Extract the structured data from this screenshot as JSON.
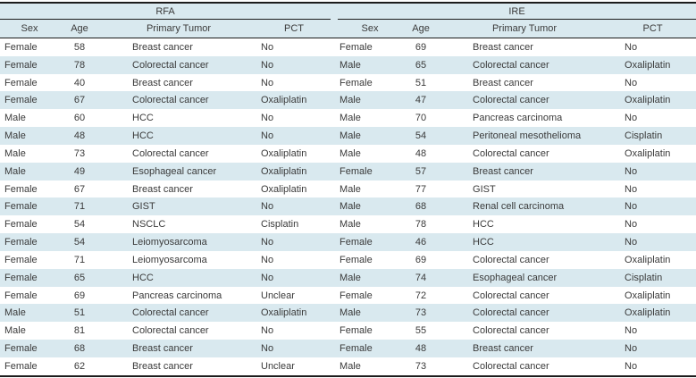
{
  "colors": {
    "stripe": "#d9e9ef",
    "rule": "#1c1c1c",
    "text": "#3a3a3a"
  },
  "groups": [
    {
      "label": "RFA",
      "columns": [
        "Sex",
        "Age",
        "Primary Tumor",
        "PCT"
      ],
      "rows": [
        [
          "Female",
          58,
          "Breast cancer",
          "No"
        ],
        [
          "Female",
          78,
          "Colorectal cancer",
          "No"
        ],
        [
          "Female",
          40,
          "Breast cancer",
          "No"
        ],
        [
          "Female",
          67,
          "Colorectal cancer",
          "Oxaliplatin"
        ],
        [
          "Male",
          60,
          "HCC",
          "No"
        ],
        [
          "Male",
          48,
          "HCC",
          "No"
        ],
        [
          "Male",
          73,
          "Colorectal cancer",
          "Oxaliplatin"
        ],
        [
          "Male",
          49,
          "Esophageal cancer",
          "Oxaliplatin"
        ],
        [
          "Female",
          67,
          "Breast cancer",
          "Oxaliplatin"
        ],
        [
          "Female",
          71,
          "GIST",
          "No"
        ],
        [
          "Female",
          54,
          "NSCLC",
          "Cisplatin"
        ],
        [
          "Female",
          54,
          "Leiomyosarcoma",
          "No"
        ],
        [
          "Female",
          71,
          "Leiomyosarcoma",
          "No"
        ],
        [
          "Female",
          65,
          "HCC",
          "No"
        ],
        [
          "Female",
          69,
          "Pancreas carcinoma",
          "Unclear"
        ],
        [
          "Male",
          51,
          "Colorectal cancer",
          "Oxaliplatin"
        ],
        [
          "Male",
          81,
          "Colorectal cancer",
          "No"
        ],
        [
          "Female",
          68,
          "Breast cancer",
          "No"
        ],
        [
          "Female",
          62,
          "Breast cancer",
          "Unclear"
        ]
      ]
    },
    {
      "label": "IRE",
      "columns": [
        "Sex",
        "Age",
        "Primary Tumor",
        "PCT"
      ],
      "rows": [
        [
          "Female",
          69,
          "Breast cancer",
          "No"
        ],
        [
          "Male",
          65,
          "Colorectal cancer",
          "Oxaliplatin"
        ],
        [
          "Female",
          51,
          "Breast cancer",
          "No"
        ],
        [
          "Male",
          47,
          "Colorectal cancer",
          "Oxaliplatin"
        ],
        [
          "Male",
          70,
          "Pancreas carcinoma",
          "No"
        ],
        [
          "Male",
          54,
          "Peritoneal mesothelioma",
          "Cisplatin"
        ],
        [
          "Male",
          48,
          "Colorectal cancer",
          "Oxaliplatin"
        ],
        [
          "Female",
          57,
          "Breast cancer",
          "No"
        ],
        [
          "Male",
          77,
          "GIST",
          "No"
        ],
        [
          "Male",
          68,
          "Renal cell carcinoma",
          "No"
        ],
        [
          "Male",
          78,
          "HCC",
          "No"
        ],
        [
          "Female",
          46,
          "HCC",
          "No"
        ],
        [
          "Female",
          69,
          "Colorectal cancer",
          "Oxaliplatin"
        ],
        [
          "Male",
          74,
          "Esophageal cancer",
          "Cisplatin"
        ],
        [
          "Female",
          72,
          "Colorectal cancer",
          "Oxaliplatin"
        ],
        [
          "Male",
          73,
          "Colorectal cancer",
          "Oxaliplatin"
        ],
        [
          "Female",
          55,
          "Colorectal cancer",
          "No"
        ],
        [
          "Female",
          48,
          "Breast cancer",
          "No"
        ],
        [
          "Male",
          73,
          "Colorectal cancer",
          "No"
        ]
      ]
    }
  ]
}
